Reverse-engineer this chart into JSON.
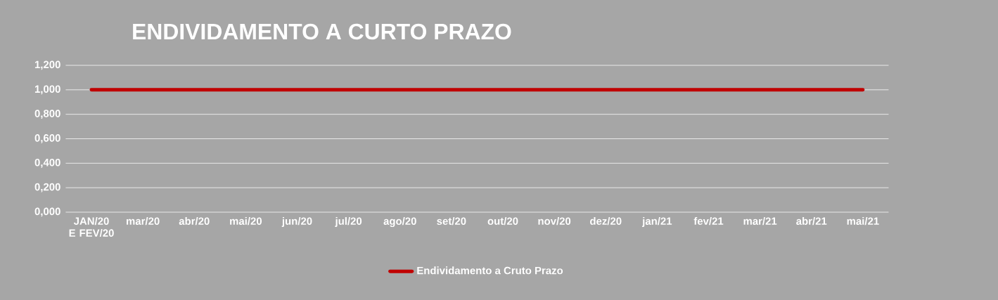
{
  "chart_data": {
    "type": "line",
    "title": "ENDIVIDAMENTO A CURTO PRAZO",
    "categories": [
      "JAN/20 E FEV/20",
      "mar/20",
      "abr/20",
      "mai/20",
      "jun/20",
      "jul/20",
      "ago/20",
      "set/20",
      "out/20",
      "nov/20",
      "dez/20",
      "jan/21",
      "fev/21",
      "mar/21",
      "abr/21",
      "mai/21"
    ],
    "series": [
      {
        "name": "Endividamento a Cruto Prazo",
        "color": "#c00000",
        "values": [
          1,
          1,
          1,
          1,
          1,
          1,
          1,
          1,
          1,
          1,
          1,
          1,
          1,
          1,
          1,
          1
        ]
      }
    ],
    "ylim": [
      0,
      1.2
    ],
    "yticks": [
      {
        "value": 0,
        "label": "0,000"
      },
      {
        "value": 0.2,
        "label": "0,200"
      },
      {
        "value": 0.4,
        "label": "0,400"
      },
      {
        "value": 0.6,
        "label": "0,600"
      },
      {
        "value": 0.8,
        "label": "0,800"
      },
      {
        "value": 1.0,
        "label": "1,000"
      },
      {
        "value": 1.2,
        "label": "1,200"
      }
    ],
    "grid": "y",
    "legend": "bottom",
    "marker": "none",
    "line_style": "solid"
  }
}
